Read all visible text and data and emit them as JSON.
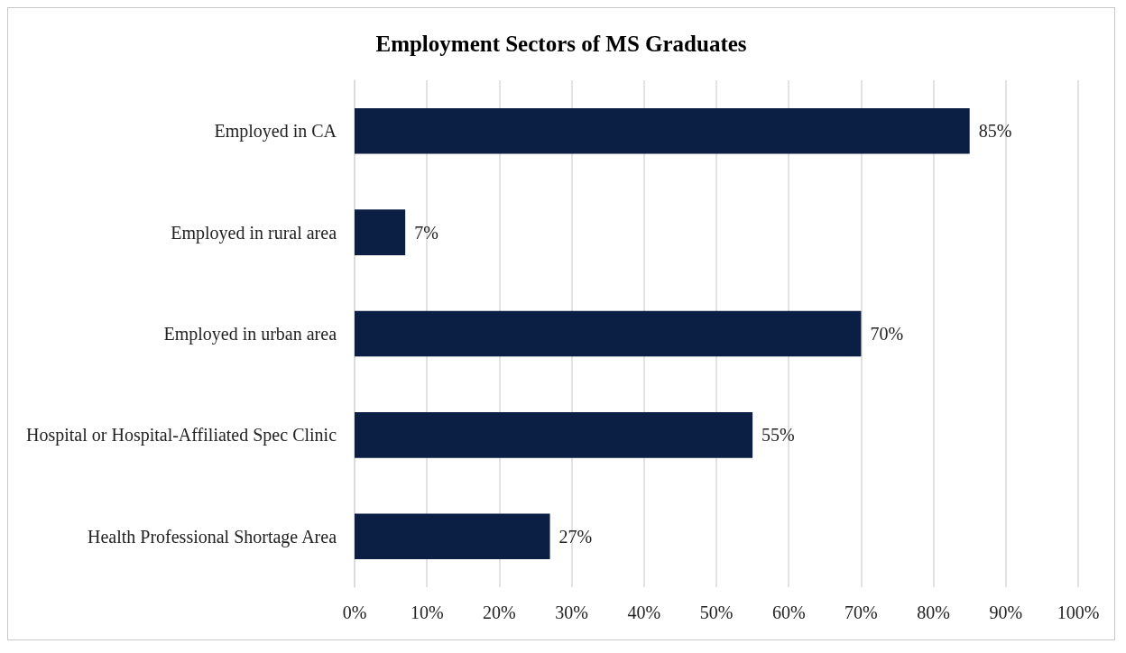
{
  "chart_data": {
    "type": "bar",
    "orientation": "horizontal",
    "title": "Employment Sectors of MS Graduates",
    "categories": [
      "Employed in CA",
      "Employed in rural area",
      "Employed in urban area",
      "Hospital or Hospital-Affiliated Spec Clinic",
      "Health Professional Shortage Area"
    ],
    "values": [
      85,
      7,
      70,
      55,
      27
    ],
    "value_labels": [
      "85%",
      "7%",
      "70%",
      "55%",
      "27%"
    ],
    "color": "#0b1f45",
    "xlim": [
      0,
      100
    ],
    "xticks": [
      {
        "value": 0,
        "label": "0%"
      },
      {
        "value": 10,
        "label": "10%"
      },
      {
        "value": 20,
        "label": "20%"
      },
      {
        "value": 30,
        "label": "30%"
      },
      {
        "value": 40,
        "label": "40%"
      },
      {
        "value": 50,
        "label": "50%"
      },
      {
        "value": 60,
        "label": "60%"
      },
      {
        "value": 70,
        "label": "70%"
      },
      {
        "value": 80,
        "label": "80%"
      },
      {
        "value": 90,
        "label": "90%"
      },
      {
        "value": 100,
        "label": "100%"
      }
    ],
    "grid": "x"
  }
}
